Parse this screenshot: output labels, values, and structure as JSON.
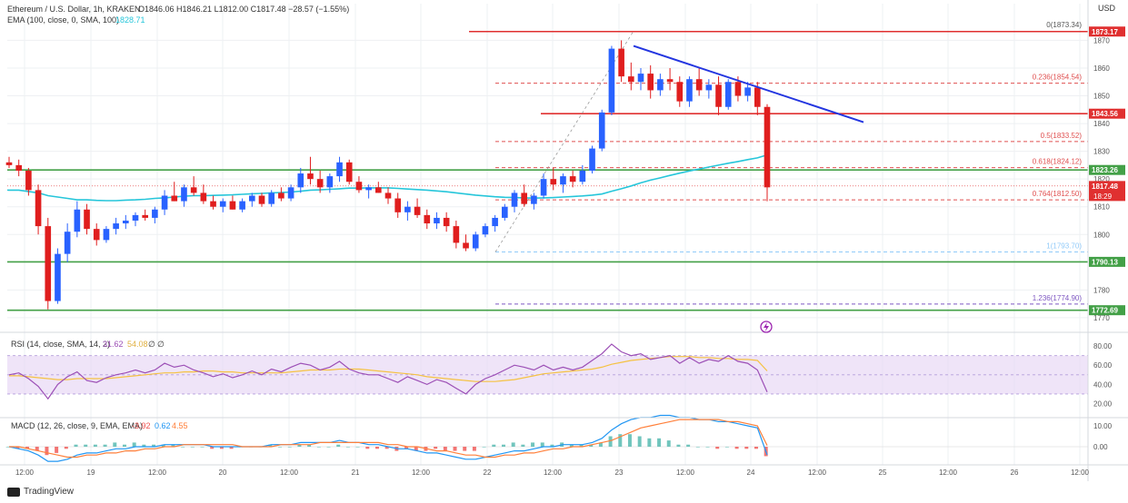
{
  "header": {
    "symbol_line": "Ethereum / U.S. Dollar, 1h, KRAKEN",
    "ohlc": "O1846.06 H1846.21 L1812.00 C1817.48 −28.57 (−1.55%)",
    "ema_label": "EMA (100, close, 0, SMA, 100)",
    "ema_value": "1828.71",
    "rsi_label": "RSI (14, close, SMA, 14, 2)",
    "rsi_values": [
      "31.62",
      "54.08",
      "∅",
      "∅"
    ],
    "macd_label": "MACD (12, 26, close, 9, EMA, EMA)",
    "macd_values": [
      "-3.92",
      "0.62",
      "4.55"
    ]
  },
  "currency": "USD",
  "footer": {
    "brand": "TradingView"
  },
  "colors": {
    "up": "#2962ff",
    "down": "#e01e1e",
    "ema": "#26c6da",
    "resistance": "#e03030",
    "support": "#43a047",
    "fib": "#e05050",
    "fib1": "#90caf9",
    "fib1236": "#7e57c2",
    "trend": "#2335e0",
    "rsi": "#9c4fb6",
    "rsi_ma": "#f5c242",
    "rsi_band": "#e8d8f5",
    "macd": "#2196f3",
    "signal": "#ff7f3a",
    "hist_up": "#4db6ac",
    "hist_down": "#ef5350"
  },
  "chart_data": {
    "type": "candlestick",
    "x_ticks": [
      "12:00",
      "19",
      "12:00",
      "20",
      "12:00",
      "21",
      "12:00",
      "22",
      "12:00",
      "23",
      "12:00",
      "24",
      "12:00",
      "25",
      "12:00",
      "26",
      "12:00"
    ],
    "y_ticks": [
      1770,
      1780,
      1790,
      1800,
      1810,
      1820,
      1830,
      1840,
      1850,
      1860,
      1870
    ],
    "price_levels": [
      {
        "label": "1873.17",
        "value": 1873.17,
        "kind": "resistance"
      },
      {
        "label": "1843.56",
        "value": 1843.56,
        "kind": "resistance"
      },
      {
        "label": "1823.26",
        "value": 1823.26,
        "kind": "support"
      },
      {
        "label": "1817.48",
        "value": 1817.48,
        "kind": "current",
        "sub": "18:29"
      },
      {
        "label": "1790.13",
        "value": 1790.13,
        "kind": "support"
      },
      {
        "label": "1772.69",
        "value": 1772.69,
        "kind": "support"
      }
    ],
    "fib_levels": [
      {
        "label": "0(1873.34)",
        "value": 1873.34
      },
      {
        "label": "0.236(1854.54)",
        "value": 1854.54
      },
      {
        "label": "0.5(1833.52)",
        "value": 1833.52
      },
      {
        "label": "0.618(1824.12)",
        "value": 1824.12
      },
      {
        "label": "0.764(1812.50)",
        "value": 1812.5
      },
      {
        "label": "1(1793.70)",
        "value": 1793.7
      },
      {
        "label": "1.236(1774.90)",
        "value": 1774.9
      }
    ],
    "rsi_ticks": [
      "80.00",
      "60.00",
      "40.00",
      "20.00"
    ],
    "macd_ticks": [
      "10.00",
      "0.00"
    ],
    "candles": [
      [
        1826,
        1828,
        1824,
        1825
      ],
      [
        1825,
        1827,
        1821,
        1823
      ],
      [
        1823,
        1824,
        1814,
        1816
      ],
      [
        1816,
        1818,
        1800,
        1803
      ],
      [
        1803,
        1806,
        1773,
        1776
      ],
      [
        1776,
        1795,
        1775,
        1793
      ],
      [
        1793,
        1804,
        1790,
        1801
      ],
      [
        1801,
        1812,
        1799,
        1809
      ],
      [
        1809,
        1811,
        1800,
        1802
      ],
      [
        1802,
        1804,
        1796,
        1798
      ],
      [
        1798,
        1803,
        1797,
        1802
      ],
      [
        1802,
        1806,
        1800,
        1804
      ],
      [
        1804,
        1807,
        1802,
        1805
      ],
      [
        1805,
        1808,
        1803,
        1807
      ],
      [
        1807,
        1809,
        1805,
        1806
      ],
      [
        1806,
        1810,
        1804,
        1809
      ],
      [
        1809,
        1816,
        1807,
        1814
      ],
      [
        1814,
        1819,
        1812,
        1812
      ],
      [
        1812,
        1818,
        1810,
        1817
      ],
      [
        1817,
        1821,
        1814,
        1815
      ],
      [
        1815,
        1818,
        1811,
        1812
      ],
      [
        1812,
        1814,
        1809,
        1810
      ],
      [
        1810,
        1813,
        1808,
        1812
      ],
      [
        1812,
        1814,
        1809,
        1809
      ],
      [
        1809,
        1813,
        1808,
        1812
      ],
      [
        1812,
        1815,
        1810,
        1814
      ],
      [
        1814,
        1815,
        1810,
        1811
      ],
      [
        1811,
        1816,
        1810,
        1815
      ],
      [
        1815,
        1817,
        1812,
        1813
      ],
      [
        1813,
        1818,
        1812,
        1817
      ],
      [
        1817,
        1824,
        1815,
        1822
      ],
      [
        1822,
        1828,
        1818,
        1820
      ],
      [
        1820,
        1823,
        1815,
        1817
      ],
      [
        1817,
        1822,
        1815,
        1821
      ],
      [
        1821,
        1828,
        1819,
        1826
      ],
      [
        1826,
        1827,
        1818,
        1819
      ],
      [
        1819,
        1821,
        1815,
        1816
      ],
      [
        1816,
        1818,
        1813,
        1817
      ],
      [
        1817,
        1819,
        1815,
        1815
      ],
      [
        1815,
        1817,
        1811,
        1813
      ],
      [
        1813,
        1815,
        1806,
        1808
      ],
      [
        1808,
        1812,
        1805,
        1810
      ],
      [
        1810,
        1813,
        1806,
        1807
      ],
      [
        1807,
        1809,
        1802,
        1804
      ],
      [
        1804,
        1808,
        1802,
        1806
      ],
      [
        1806,
        1808,
        1801,
        1803
      ],
      [
        1803,
        1805,
        1795,
        1797
      ],
      [
        1797,
        1800,
        1794,
        1795
      ],
      [
        1795,
        1801,
        1794,
        1800
      ],
      [
        1800,
        1804,
        1799,
        1803
      ],
      [
        1803,
        1807,
        1801,
        1806
      ],
      [
        1806,
        1811,
        1805,
        1810
      ],
      [
        1810,
        1816,
        1808,
        1815
      ],
      [
        1815,
        1818,
        1810,
        1811
      ],
      [
        1811,
        1815,
        1809,
        1814
      ],
      [
        1814,
        1822,
        1813,
        1820
      ],
      [
        1820,
        1824,
        1816,
        1818
      ],
      [
        1818,
        1822,
        1815,
        1821
      ],
      [
        1821,
        1823,
        1817,
        1819
      ],
      [
        1819,
        1825,
        1818,
        1823
      ],
      [
        1823,
        1832,
        1822,
        1831
      ],
      [
        1831,
        1845,
        1830,
        1844
      ],
      [
        1844,
        1868,
        1843,
        1867
      ],
      [
        1867,
        1870,
        1855,
        1857
      ],
      [
        1857,
        1862,
        1852,
        1855
      ],
      [
        1855,
        1860,
        1852,
        1858
      ],
      [
        1858,
        1861,
        1849,
        1852
      ],
      [
        1852,
        1858,
        1850,
        1856
      ],
      [
        1856,
        1860,
        1852,
        1855
      ],
      [
        1855,
        1857,
        1846,
        1848
      ],
      [
        1848,
        1857,
        1846,
        1856
      ],
      [
        1856,
        1860,
        1850,
        1852
      ],
      [
        1852,
        1856,
        1849,
        1854
      ],
      [
        1854,
        1857,
        1843,
        1846
      ],
      [
        1846,
        1856,
        1845,
        1855
      ],
      [
        1855,
        1857,
        1848,
        1850
      ],
      [
        1850,
        1855,
        1848,
        1853
      ],
      [
        1853,
        1855,
        1843,
        1846
      ],
      [
        1846,
        1847,
        1812,
        1817
      ]
    ],
    "ema": [
      1816,
      1816,
      1815.5,
      1815,
      1814,
      1813.5,
      1813,
      1812.5,
      1812.5,
      1812.3,
      1812.2,
      1812.2,
      1812.4,
      1812.5,
      1812.7,
      1813,
      1813.2,
      1813.5,
      1813.8,
      1814,
      1814,
      1814.1,
      1814.2,
      1814.3,
      1814.5,
      1814.7,
      1814.8,
      1815,
      1815.1,
      1815.3,
      1815.6,
      1816,
      1816.1,
      1816.3,
      1816.5,
      1816.7,
      1816.7,
      1816.8,
      1816.8,
      1816.8,
      1816.6,
      1816.4,
      1816.2,
      1816,
      1815.7,
      1815.4,
      1815,
      1814.6,
      1814.2,
      1813.9,
      1813.6,
      1813.4,
      1813.3,
      1813.2,
      1813.1,
      1813.2,
      1813.3,
      1813.5,
      1813.7,
      1813.9,
      1814.2,
      1814.6,
      1815.6,
      1816.5,
      1817.5,
      1818.6,
      1819.6,
      1820.4,
      1821.3,
      1822.1,
      1822.9,
      1823.6,
      1824.3,
      1825,
      1825.7,
      1826.3,
      1827,
      1827.6,
      1828.71
    ],
    "rsi": [
      50,
      52,
      46,
      38,
      25,
      40,
      48,
      53,
      44,
      42,
      47,
      50,
      52,
      55,
      52,
      55,
      62,
      58,
      60,
      55,
      52,
      48,
      51,
      47,
      50,
      54,
      50,
      56,
      53,
      58,
      62,
      60,
      55,
      58,
      64,
      56,
      52,
      50,
      50,
      46,
      42,
      48,
      44,
      40,
      45,
      42,
      36,
      30,
      40,
      46,
      50,
      55,
      60,
      58,
      55,
      60,
      55,
      58,
      55,
      58,
      65,
      72,
      82,
      74,
      70,
      72,
      66,
      68,
      70,
      62,
      68,
      62,
      66,
      64,
      70,
      64,
      62,
      55,
      32
    ],
    "rsi_ma": [
      49,
      49,
      48,
      47,
      46,
      45,
      45,
      46,
      46,
      46,
      46,
      47,
      48,
      49,
      50,
      51,
      52,
      52,
      53,
      53,
      54,
      54,
      53,
      53,
      52,
      52,
      52,
      52,
      52,
      53,
      54,
      55,
      55,
      55,
      56,
      56,
      56,
      55,
      54,
      53,
      52,
      51,
      50,
      48,
      47,
      46,
      45,
      44,
      43,
      43,
      43,
      44,
      45,
      47,
      49,
      51,
      52,
      53,
      54,
      55,
      56,
      58,
      61,
      63,
      65,
      66,
      67,
      68,
      69,
      69,
      69,
      68,
      68,
      67,
      67,
      66,
      66,
      65,
      54.08
    ],
    "macd": [
      0,
      -1,
      -2,
      -4,
      -7,
      -7,
      -6,
      -4,
      -3,
      -3,
      -2,
      -1,
      -1,
      0,
      0,
      0,
      1,
      1,
      1,
      1,
      1,
      0,
      0,
      0,
      0,
      0,
      0,
      1,
      1,
      1,
      2,
      2,
      2,
      2,
      3,
      2,
      2,
      1,
      1,
      0,
      -1,
      -1,
      -2,
      -3,
      -3,
      -4,
      -5,
      -6,
      -6,
      -5,
      -4,
      -3,
      -2,
      -2,
      -1,
      0,
      0,
      1,
      1,
      1,
      2,
      4,
      8,
      11,
      13,
      14,
      14,
      15,
      15,
      14,
      14,
      13,
      13,
      12,
      12,
      11,
      10,
      9,
      -3.92
    ],
    "signal": [
      0,
      0,
      -1,
      -2,
      -3,
      -4,
      -5,
      -5,
      -4,
      -4,
      -3,
      -3,
      -2,
      -2,
      -1,
      -1,
      0,
      0,
      1,
      1,
      1,
      1,
      1,
      1,
      0,
      0,
      0,
      0,
      1,
      1,
      1,
      1,
      2,
      2,
      2,
      2,
      2,
      2,
      2,
      1,
      1,
      0,
      0,
      -1,
      -2,
      -2,
      -3,
      -4,
      -4,
      -5,
      -5,
      -4,
      -4,
      -3,
      -3,
      -2,
      -1,
      -1,
      0,
      0,
      1,
      2,
      3,
      5,
      7,
      9,
      10,
      11,
      12,
      13,
      13,
      13,
      13,
      13,
      12,
      12,
      11,
      10,
      0.62
    ]
  }
}
